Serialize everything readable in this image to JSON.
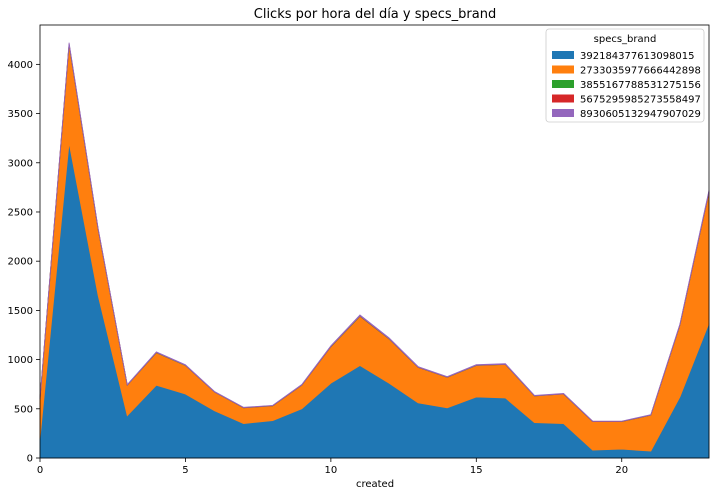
{
  "chart_data": {
    "type": "area",
    "stacked": true,
    "title": "Clicks por hora del día y specs_brand",
    "xlabel": "created",
    "ylabel": "",
    "xlim": [
      0,
      23
    ],
    "ylim": [
      0,
      4400
    ],
    "xticks": [
      0,
      5,
      10,
      15,
      20
    ],
    "yticks": [
      0,
      500,
      1000,
      1500,
      2000,
      2500,
      3000,
      3500,
      4000
    ],
    "grid": false,
    "legend": {
      "title": "specs_brand",
      "placement": "top-right"
    },
    "x": [
      0,
      1,
      2,
      3,
      4,
      5,
      6,
      7,
      8,
      9,
      10,
      11,
      12,
      13,
      14,
      15,
      16,
      17,
      18,
      19,
      20,
      21,
      22,
      23
    ],
    "series": [
      {
        "name": "392184377613098015",
        "color": "#1f77b4",
        "values": [
          200,
          3200,
          1650,
          430,
          740,
          650,
          480,
          350,
          380,
          500,
          760,
          940,
          760,
          560,
          510,
          620,
          610,
          360,
          350,
          80,
          90,
          70,
          620,
          1370
        ]
      },
      {
        "name": "2733035977666442898",
        "color": "#ff7f0e",
        "values": [
          400,
          1000,
          670,
          310,
          330,
          290,
          190,
          160,
          150,
          240,
          370,
          500,
          450,
          360,
          310,
          320,
          340,
          270,
          300,
          290,
          280,
          365,
          730,
          1330
        ]
      },
      {
        "name": "3855167788531275156",
        "color": "#2ca02c",
        "values": [
          2,
          5,
          3,
          1,
          2,
          2,
          1,
          1,
          1,
          1,
          2,
          3,
          2,
          2,
          1,
          2,
          2,
          1,
          1,
          1,
          1,
          1,
          2,
          4
        ]
      },
      {
        "name": "5675295985273558497",
        "color": "#d62728",
        "values": [
          1,
          3,
          2,
          1,
          1,
          1,
          1,
          1,
          1,
          1,
          2,
          2,
          2,
          1,
          1,
          1,
          1,
          1,
          1,
          1,
          1,
          1,
          2,
          3
        ]
      },
      {
        "name": "8930605132947907029",
        "color": "#9467bd",
        "values": [
          4,
          12,
          8,
          4,
          6,
          5,
          4,
          3,
          3,
          5,
          7,
          9,
          7,
          6,
          5,
          6,
          6,
          4,
          4,
          3,
          3,
          4,
          8,
          14
        ]
      }
    ]
  }
}
